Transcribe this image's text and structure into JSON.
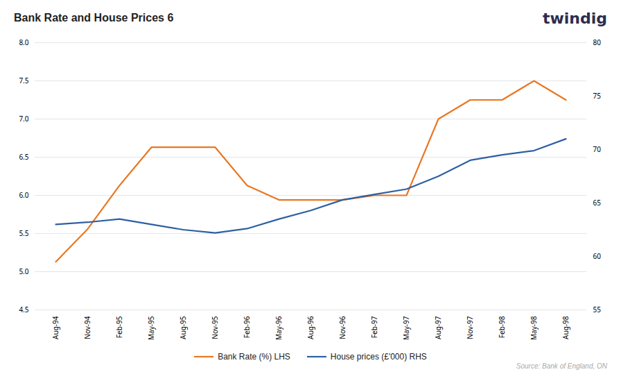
{
  "chart_data": {
    "type": "line",
    "title": "Bank Rate and House Prices 6",
    "categories": [
      "Aug-94",
      "Nov-94",
      "Feb-95",
      "May-95",
      "Aug-95",
      "Nov-95",
      "Feb-96",
      "May-96",
      "Aug-96",
      "Nov-96",
      "Feb-97",
      "May-97",
      "Aug-97",
      "Nov-97",
      "Feb-98",
      "May-98",
      "Aug-98"
    ],
    "series": [
      {
        "name": "Bank Rate (%) LHS",
        "color": "#E87722",
        "values": [
          5.13,
          5.56,
          6.13,
          6.63,
          6.63,
          6.63,
          6.13,
          5.94,
          5.94,
          5.94,
          6.0,
          6.0,
          7.0,
          7.25,
          7.25,
          7.5,
          7.25
        ]
      },
      {
        "name": "House prices (£'000) RHS",
        "color": "#2E5FA3",
        "axis": "y2",
        "values": [
          63.0,
          63.2,
          63.5,
          63.0,
          62.5,
          62.2,
          62.6,
          63.5,
          64.3,
          65.3,
          65.8,
          66.3,
          67.5,
          69.0,
          69.5,
          69.9,
          71.0
        ]
      }
    ],
    "ylim": [
      4.5,
      8.0
    ],
    "yticks": [
      4.5,
      {
        "value": 5.0,
        "label": "5.0"
      },
      5.5,
      {
        "value": 6.0,
        "label": "6.0"
      },
      6.5,
      {
        "value": 7.0,
        "label": "7.0"
      },
      7.5,
      {
        "value": 8.0,
        "label": "8.0"
      }
    ],
    "y2lim": [
      55,
      80
    ],
    "y2ticks": [
      55,
      60,
      65,
      70,
      75,
      80
    ],
    "grid": true,
    "legend": "bottom",
    "annotations": [
      {
        "text": "twindig",
        "color": "#2d2d4e"
      },
      {
        "text": "Source: Bank of England, ON",
        "color": "#aaaaaa"
      }
    ]
  }
}
